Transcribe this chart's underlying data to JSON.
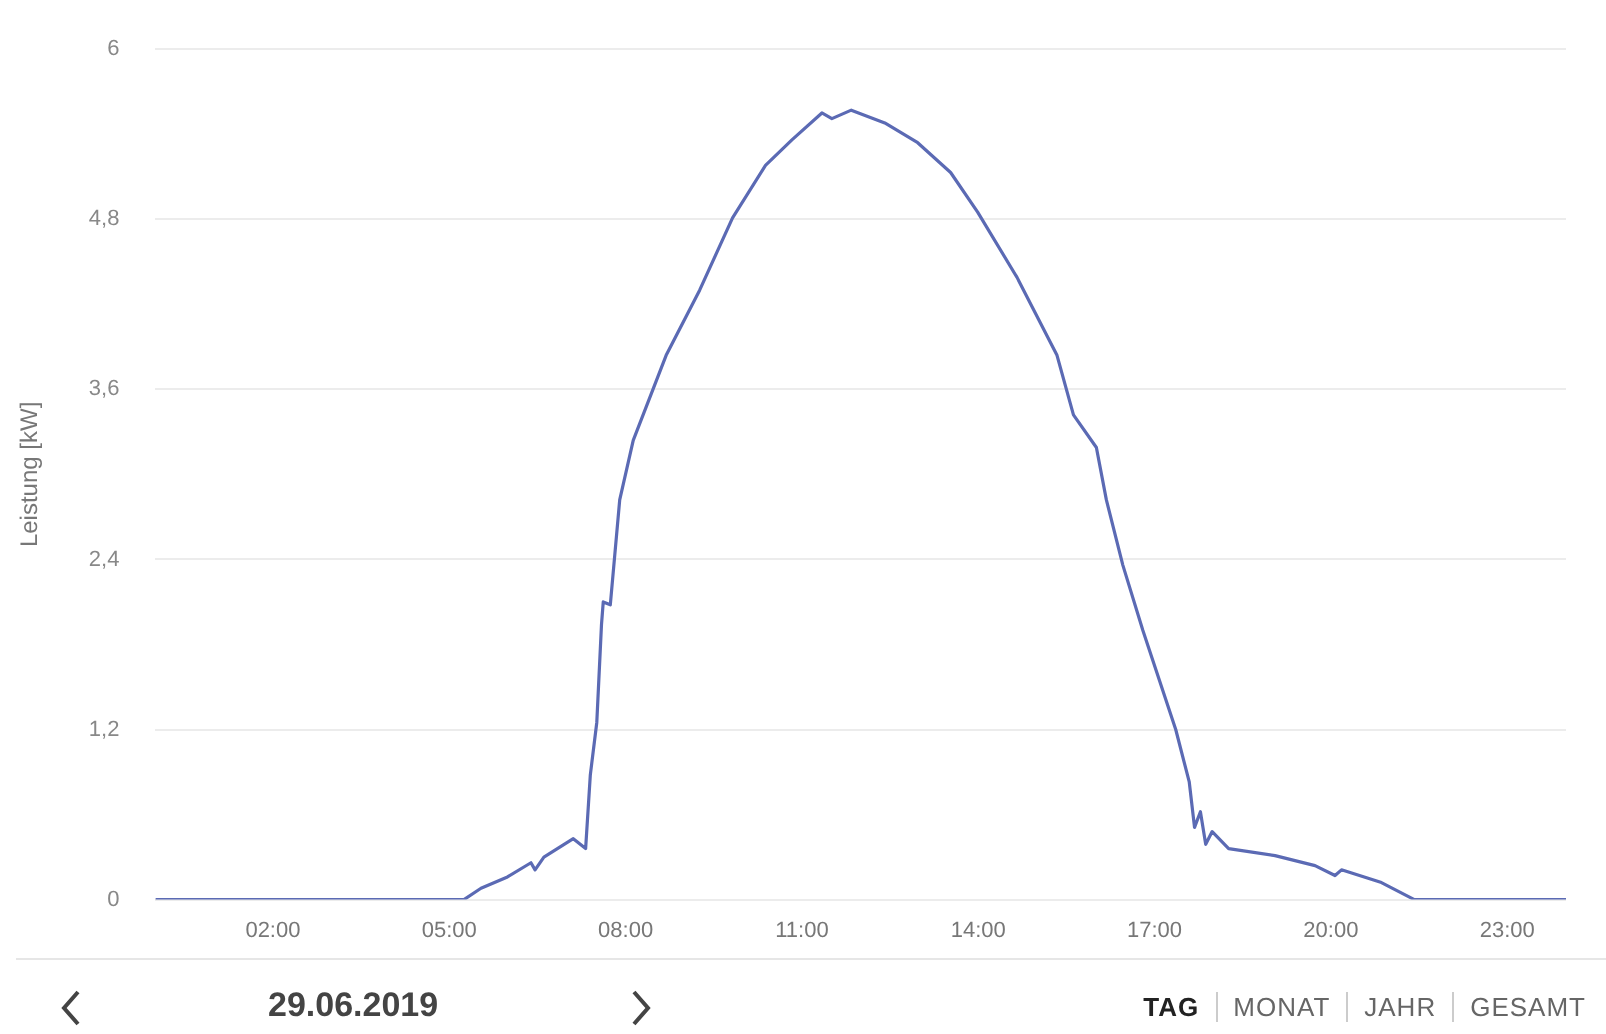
{
  "chart_data": {
    "type": "line",
    "ylabel": "Leistung [kW]",
    "annotations": [
      "29.06.2019",
      "TAG",
      "MONAT",
      "JAHR",
      "GESAMT"
    ],
    "xlim": [
      0,
      24
    ],
    "xticks": [
      {
        "value": 2,
        "label": "02:00"
      },
      {
        "value": 5,
        "label": "05:00"
      },
      {
        "value": 8,
        "label": "08:00"
      },
      {
        "value": 11,
        "label": "11:00"
      },
      {
        "value": 14,
        "label": "14:00"
      },
      {
        "value": 17,
        "label": "17:00"
      },
      {
        "value": 20,
        "label": "20:00"
      },
      {
        "value": 23,
        "label": "23:00"
      }
    ],
    "ylim": [
      0,
      6
    ],
    "yticks": [
      0,
      {
        "value": 1.2,
        "label": "1,2"
      },
      {
        "value": 2.4,
        "label": "2,4"
      },
      {
        "value": 3.6,
        "label": "3,6"
      },
      {
        "value": 4.8,
        "label": "4,8"
      },
      6
    ],
    "grid": "y",
    "legend": false,
    "marker": "none",
    "line_style": "solid",
    "series": [
      {
        "color": "#5b6ab4",
        "x": [
          0,
          5.25,
          5.54,
          5.99,
          6.39,
          6.46,
          6.61,
          7.11,
          7.32,
          7.4,
          7.51,
          7.59,
          7.62,
          7.74,
          7.9,
          8.13,
          8.69,
          9.26,
          9.82,
          10.38,
          10.83,
          11.34,
          11.51,
          11.84,
          12.41,
          12.97,
          13.53,
          13.99,
          14.66,
          15.34,
          15.62,
          16.01,
          16.18,
          16.46,
          16.8,
          17.36,
          17.59,
          17.68,
          17.78,
          17.87,
          17.98,
          18.26,
          19.05,
          19.73,
          20.07,
          20.18,
          20.86,
          21.42,
          24
        ],
        "values": [
          0,
          0,
          0.08,
          0.16,
          0.26,
          0.21,
          0.3,
          0.43,
          0.36,
          0.88,
          1.25,
          1.94,
          2.1,
          2.08,
          2.82,
          3.24,
          3.84,
          4.3,
          4.81,
          5.18,
          5.36,
          5.55,
          5.51,
          5.57,
          5.48,
          5.34,
          5.13,
          4.85,
          4.39,
          3.84,
          3.42,
          3.19,
          2.82,
          2.36,
          1.9,
          1.2,
          0.83,
          0.51,
          0.62,
          0.39,
          0.48,
          0.36,
          0.31,
          0.24,
          0.17,
          0.21,
          0.12,
          0,
          0
        ]
      }
    ]
  }
}
